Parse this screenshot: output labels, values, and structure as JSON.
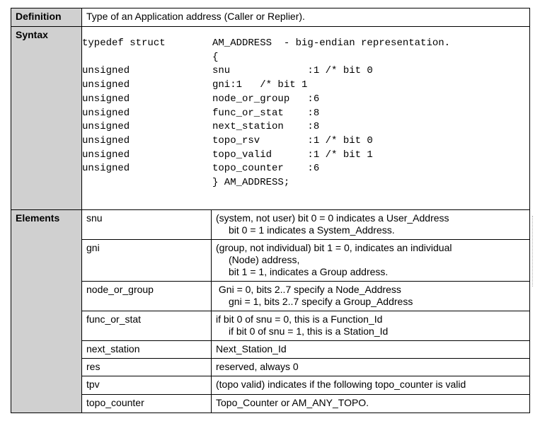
{
  "definition": {
    "label": "Definition",
    "text": "Type of an Application address (Caller or Replier)."
  },
  "syntax": {
    "label": "Syntax",
    "lines": [
      {
        "left": "typedef struct",
        "right": "AM_ADDRESS  - big-endian representation."
      },
      {
        "left": "",
        "right": "{"
      },
      {
        "left": "unsigned",
        "right": "snu             :1 /* bit 0"
      },
      {
        "left": "unsigned",
        "right": "gni:1   /* bit 1"
      },
      {
        "left": "unsigned",
        "right": "node_or_group   :6"
      },
      {
        "left": "unsigned",
        "right": "func_or_stat    :8"
      },
      {
        "left": "unsigned",
        "right": "next_station    :8"
      },
      {
        "left": "unsigned",
        "right": "topo_rsv        :1 /* bit 0"
      },
      {
        "left": "unsigned",
        "right": "topo_valid      :1 /* bit 1"
      },
      {
        "left": "unsigned",
        "right": "topo_counter    :6"
      },
      {
        "left": "",
        "right": "} AM_ADDRESS;"
      }
    ]
  },
  "elements": {
    "label": "Elements",
    "rows": [
      {
        "name": "snu",
        "desc": [
          "(system, not user) bit 0 = 0 indicates a User_Address",
          "bit 0 = 1 indicates a System_Address."
        ]
      },
      {
        "name": "gni",
        "desc": [
          "(group, not individual) bit 1 = 0, indicates an individual",
          "(Node) address,",
          "bit 1 = 1, indicates a Group address."
        ]
      },
      {
        "name": "node_or_group",
        "desc": [
          " Gni = 0, bits 2..7 specify a Node_Address",
          "gni = 1, bits 2..7 specify a Group_Address"
        ]
      },
      {
        "name": "func_or_stat",
        "desc": [
          "if bit 0 of snu = 0, this is a Function_Id",
          "if bit 0 of snu = 1, this is a Station_Id"
        ]
      },
      {
        "name": "next_station",
        "desc": [
          "Next_Station_Id"
        ]
      },
      {
        "name": "res",
        "desc": [
          "reserved, always 0"
        ]
      },
      {
        "name": "tpv",
        "desc": [
          "(topo valid) indicates if the following topo_counter is valid"
        ]
      },
      {
        "name": "topo_counter",
        "desc": [
          "Topo_Counter or AM_ANY_TOPO."
        ]
      }
    ]
  }
}
